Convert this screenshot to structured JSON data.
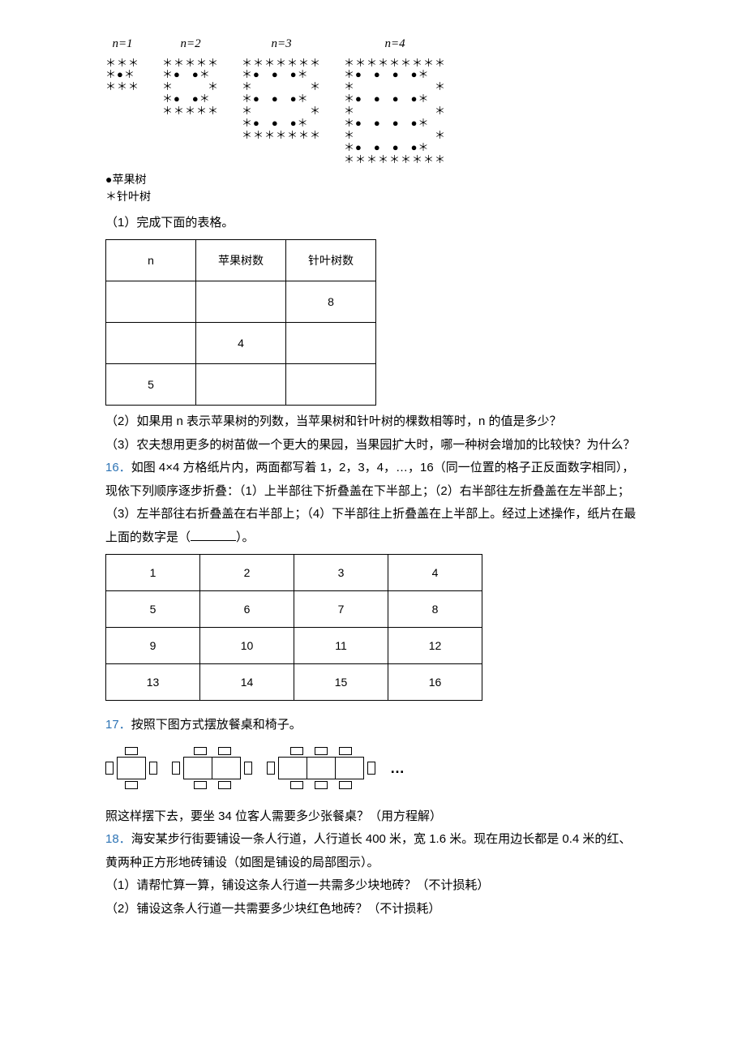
{
  "tree_diagram": {
    "labels": [
      "n=1",
      "n=2",
      "n=3",
      "n=4"
    ],
    "blocks": [
      "＊＊＊\n＊●＊\n＊＊＊",
      "＊＊＊＊＊\n＊●　●＊\n＊　　　＊\n＊●　●＊\n＊＊＊＊＊",
      "＊＊＊＊＊＊＊\n＊●　●　●＊\n＊　　　　　＊\n＊●　●　●＊\n＊　　　　　＊\n＊●　●　●＊\n＊＊＊＊＊＊＊",
      "＊＊＊＊＊＊＊＊＊\n＊●　●　●　●＊\n＊　　　　　　　＊\n＊●　●　●　●＊\n＊　　　　　　　＊\n＊●　●　●　●＊\n＊　　　　　　　＊\n＊●　●　●　●＊\n＊＊＊＊＊＊＊＊＊"
    ],
    "legend_apple": "●苹果树",
    "legend_pine": "＊针叶树"
  },
  "q15": {
    "p1": "（1）完成下面的表格。",
    "table": {
      "headers": [
        "n",
        "苹果树数",
        "针叶树数"
      ],
      "rows": [
        [
          "",
          "",
          "8"
        ],
        [
          "",
          "4",
          ""
        ],
        [
          "5",
          "",
          ""
        ]
      ]
    },
    "p2": "（2）如果用 n 表示苹果树的列数，当苹果树和针叶树的棵数相等时，n 的值是多少？",
    "p3": "（3）农夫想用更多的树苗做一个更大的果园，当果园扩大时，哪一种树会增加的比较快？为什么？"
  },
  "q16": {
    "num": "16．",
    "text_a": "如图 4×4 方格纸片内，两面都写着 1，2，3，4，…，16（同一位置的格子正反面数字相同），现依下列顺序逐步折叠：（1）上半部往下折叠盖在下半部上；（2）右半部往左折叠盖在左半部上；（3）左半部往右折叠盖在右半部上；（4）下半部往上折叠盖在上半部上。经过上述操作，纸片在最上面的数字是（",
    "text_b": "）。",
    "grid": [
      [
        "1",
        "2",
        "3",
        "4"
      ],
      [
        "5",
        "6",
        "7",
        "8"
      ],
      [
        "9",
        "10",
        "11",
        "12"
      ],
      [
        "13",
        "14",
        "15",
        "16"
      ]
    ]
  },
  "q17": {
    "num": "17．",
    "text": "按照下图方式摆放餐桌和椅子。",
    "chairs": [
      1,
      2,
      3
    ],
    "question": "照这样摆下去，要坐 34 位客人需要多少张餐桌？（用方程解）"
  },
  "q18": {
    "num": "18．",
    "text": "海安某步行街要铺设一条人行道，人行道长 400 米，宽 1.6 米。现在用边长都是 0.4 米的红、黄两种正方形地砖铺设（如图是铺设的局部图示）。",
    "p1": "（1）请帮忙算一算，铺设这条人行道一共需多少块地砖？（不计损耗）",
    "p2": "（2）铺设这条人行道一共需要多少块红色地砖？（不计损耗）"
  }
}
